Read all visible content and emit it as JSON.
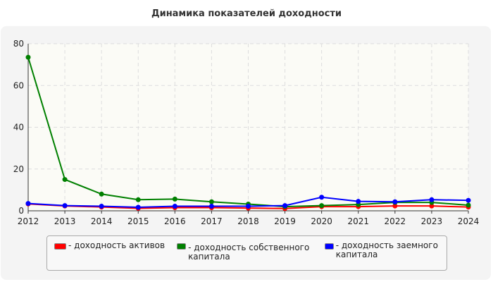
{
  "chart_data": {
    "type": "line",
    "title": "Динамика показателей доходности",
    "x": [
      2012,
      2013,
      2014,
      2015,
      2016,
      2017,
      2018,
      2019,
      2020,
      2021,
      2022,
      2023,
      2024
    ],
    "ylim": [
      0,
      80
    ],
    "yticks": [
      0,
      20,
      40,
      60,
      80
    ],
    "grid": true,
    "legend_placement": "bottom",
    "series": [
      {
        "name": "- доходность активов",
        "color": "#ff0000",
        "values": [
          3.3,
          2.3,
          1.8,
          1.2,
          1.5,
          1.5,
          1.3,
          1.1,
          2.0,
          2.0,
          2.3,
          2.3,
          1.8
        ]
      },
      {
        "name": "- доходность собственного капитала",
        "color": "#008000",
        "values": [
          73.5,
          15.0,
          8.0,
          5.3,
          5.6,
          4.3,
          3.2,
          2.0,
          2.5,
          3.0,
          4.0,
          4.0,
          2.7
        ]
      },
      {
        "name": "- доходность заемного капитала",
        "color": "#0000ff",
        "values": [
          3.5,
          2.5,
          2.2,
          1.7,
          2.2,
          2.2,
          2.2,
          2.5,
          6.5,
          4.5,
          4.3,
          5.3,
          5.0
        ]
      }
    ]
  }
}
